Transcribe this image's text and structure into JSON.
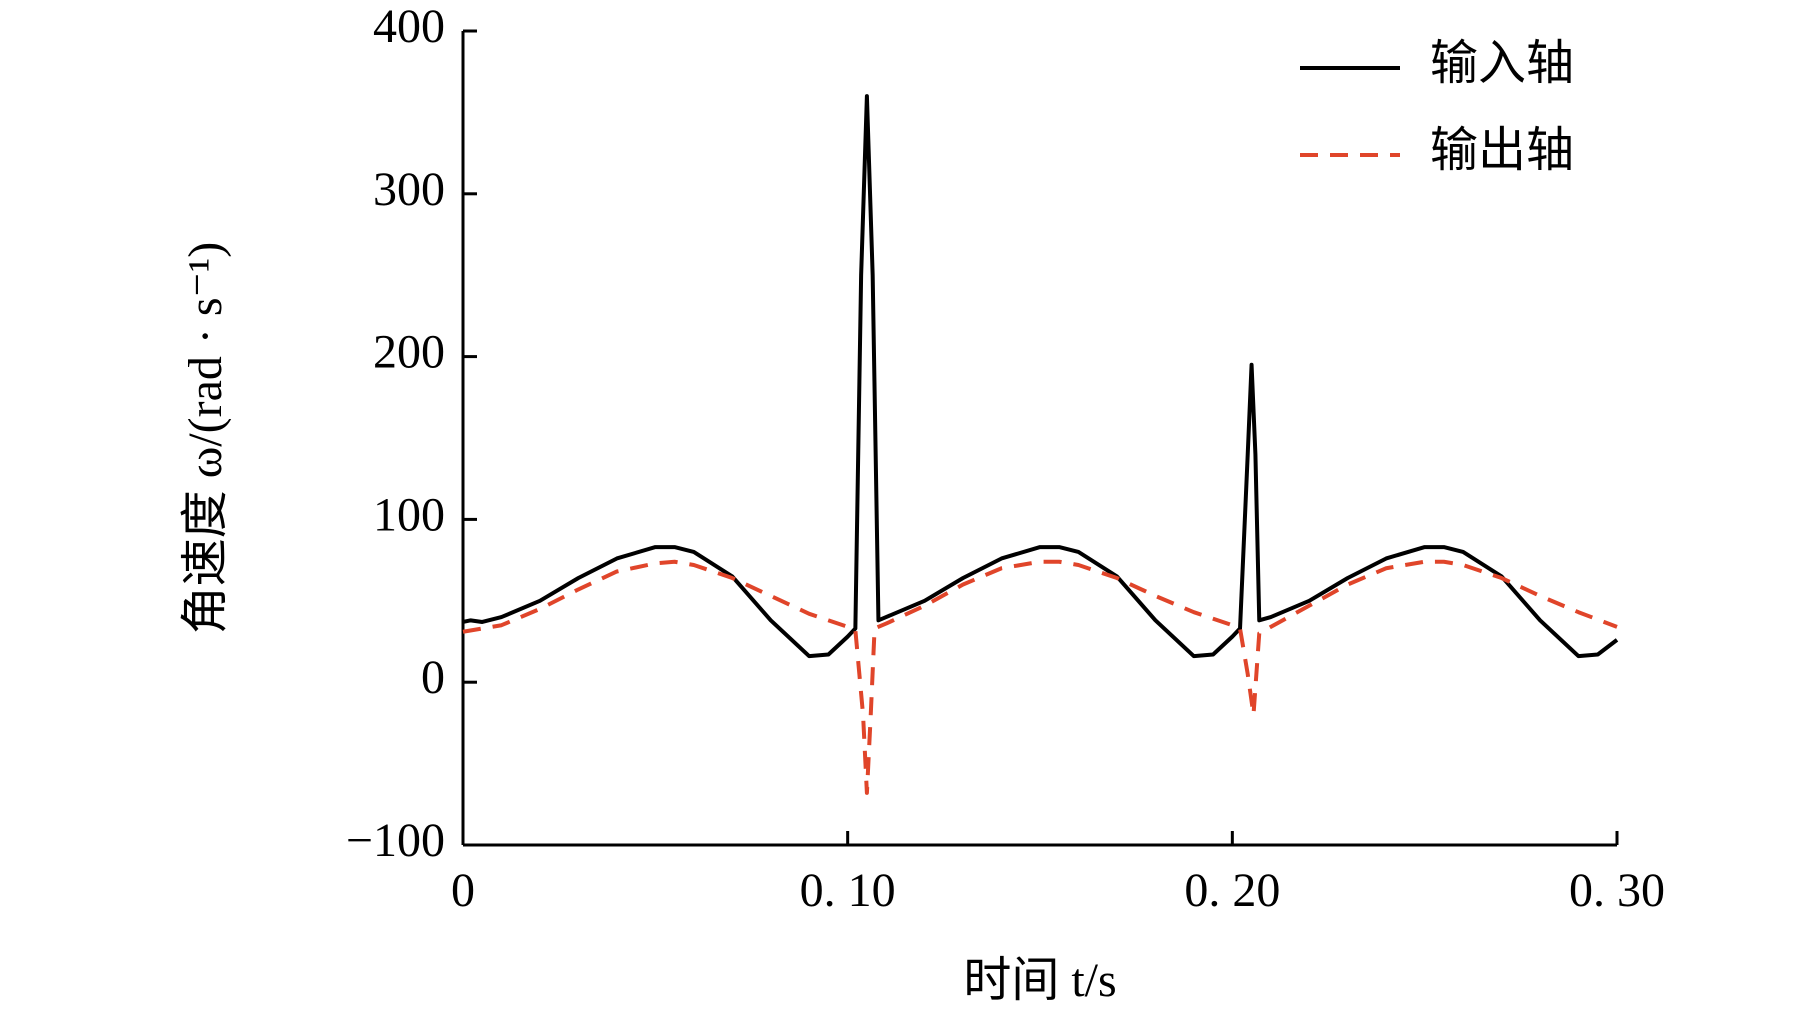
{
  "chart_data": {
    "type": "line",
    "xlabel": "时间 t/s",
    "ylabel": "角速度 ω/(rad · s⁻¹)",
    "xlim": [
      0,
      0.3
    ],
    "xticks": [
      0,
      {
        "value": 0.1,
        "label": "0. 10"
      },
      {
        "value": 0.2,
        "label": "0. 20"
      },
      {
        "value": 0.3,
        "label": "0. 30"
      }
    ],
    "ylim": [
      -100,
      400
    ],
    "yticks": [
      {
        "value": -100,
        "label": "−100"
      },
      0,
      100,
      200,
      300,
      400
    ],
    "legend": "upper right",
    "series": [
      {
        "name": "输入轴",
        "color": "#000000",
        "dash": "solid",
        "x": [
          0,
          0.002,
          0.005,
          0.01,
          0.02,
          0.03,
          0.04,
          0.05,
          0.055,
          0.06,
          0.07,
          0.08,
          0.09,
          0.095,
          0.1,
          0.102,
          0.1035,
          0.105,
          0.1065,
          0.108,
          0.11,
          0.12,
          0.13,
          0.14,
          0.15,
          0.155,
          0.16,
          0.17,
          0.18,
          0.19,
          0.195,
          0.2,
          0.202,
          0.204,
          0.205,
          0.206,
          0.207,
          0.21,
          0.22,
          0.23,
          0.24,
          0.25,
          0.255,
          0.26,
          0.27,
          0.28,
          0.29,
          0.295,
          0.3
        ],
        "values": [
          37,
          38,
          37,
          40,
          50,
          64,
          76,
          83,
          83,
          80,
          65,
          38,
          16,
          17,
          28,
          33,
          250,
          360,
          250,
          38,
          40,
          50,
          64,
          76,
          83,
          83,
          80,
          65,
          38,
          16,
          17,
          28,
          33,
          140,
          195,
          140,
          38,
          40,
          50,
          64,
          76,
          83,
          83,
          80,
          65,
          38,
          16,
          17,
          26
        ]
      },
      {
        "name": "输出轴",
        "color": "#e0452a",
        "dash": "dashed",
        "x": [
          0,
          0.01,
          0.02,
          0.03,
          0.04,
          0.05,
          0.055,
          0.06,
          0.07,
          0.08,
          0.09,
          0.1,
          0.102,
          0.104,
          0.105,
          0.106,
          0.107,
          0.11,
          0.12,
          0.13,
          0.14,
          0.15,
          0.155,
          0.16,
          0.17,
          0.18,
          0.19,
          0.2,
          0.202,
          0.204,
          0.2055,
          0.207,
          0.21,
          0.22,
          0.23,
          0.24,
          0.25,
          0.255,
          0.26,
          0.27,
          0.28,
          0.29,
          0.3
        ],
        "values": [
          31,
          35,
          45,
          57,
          68,
          73,
          74,
          72,
          64,
          53,
          42,
          34,
          32,
          -20,
          -68,
          -20,
          33,
          36,
          47,
          60,
          70,
          74,
          74,
          72,
          64,
          53,
          43,
          35,
          33,
          5,
          -20,
          30,
          34,
          47,
          60,
          70,
          74,
          74,
          72,
          64,
          53,
          43,
          34
        ]
      }
    ]
  }
}
